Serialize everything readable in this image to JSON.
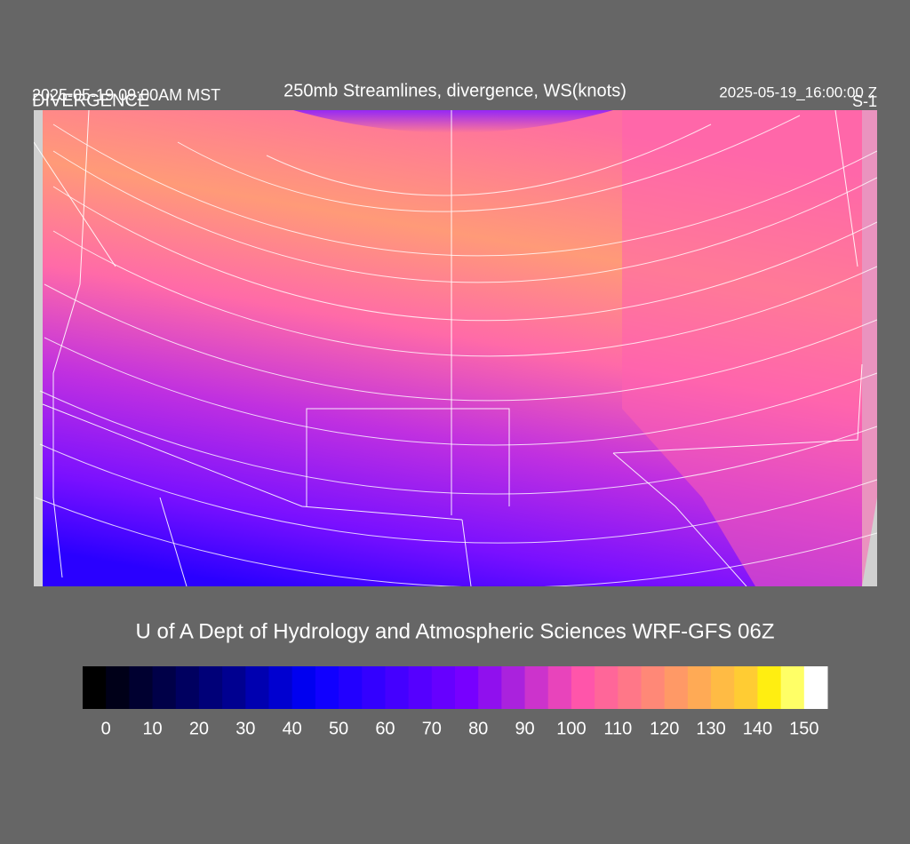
{
  "header": {
    "title": "250mb Streamlines, divergence, WS(knots)",
    "valid_local": "2025-05-19 09:00AM MST",
    "field": "DIVERGENCE",
    "valid_utc": "2025-05-19_16:00:00 Z",
    "panel": "S-1"
  },
  "footer": "U of A Dept of Hydrology and Atmospheric Sciences WRF-GFS 06Z",
  "colorbar": {
    "xlim": [
      -5,
      155
    ],
    "ticks": [
      0,
      10,
      20,
      30,
      40,
      50,
      60,
      70,
      80,
      90,
      100,
      110,
      120,
      130,
      140,
      150
    ],
    "colors": [
      "#000000",
      "#000018",
      "#000030",
      "#000048",
      "#000060",
      "#000078",
      "#000090",
      "#0000b0",
      "#0000d0",
      "#0000f0",
      "#1000ff",
      "#2200ff",
      "#3300ff",
      "#4400ff",
      "#5500ff",
      "#6600ff",
      "#7700ff",
      "#9010ee",
      "#aa22dd",
      "#cc33cc",
      "#e844bb",
      "#ff55aa",
      "#ff6699",
      "#ff7788",
      "#ff8877",
      "#ff9966",
      "#ffaa55",
      "#ffbb44",
      "#ffcc33",
      "#ffee11",
      "#ffff66",
      "#ffffff"
    ]
  }
}
